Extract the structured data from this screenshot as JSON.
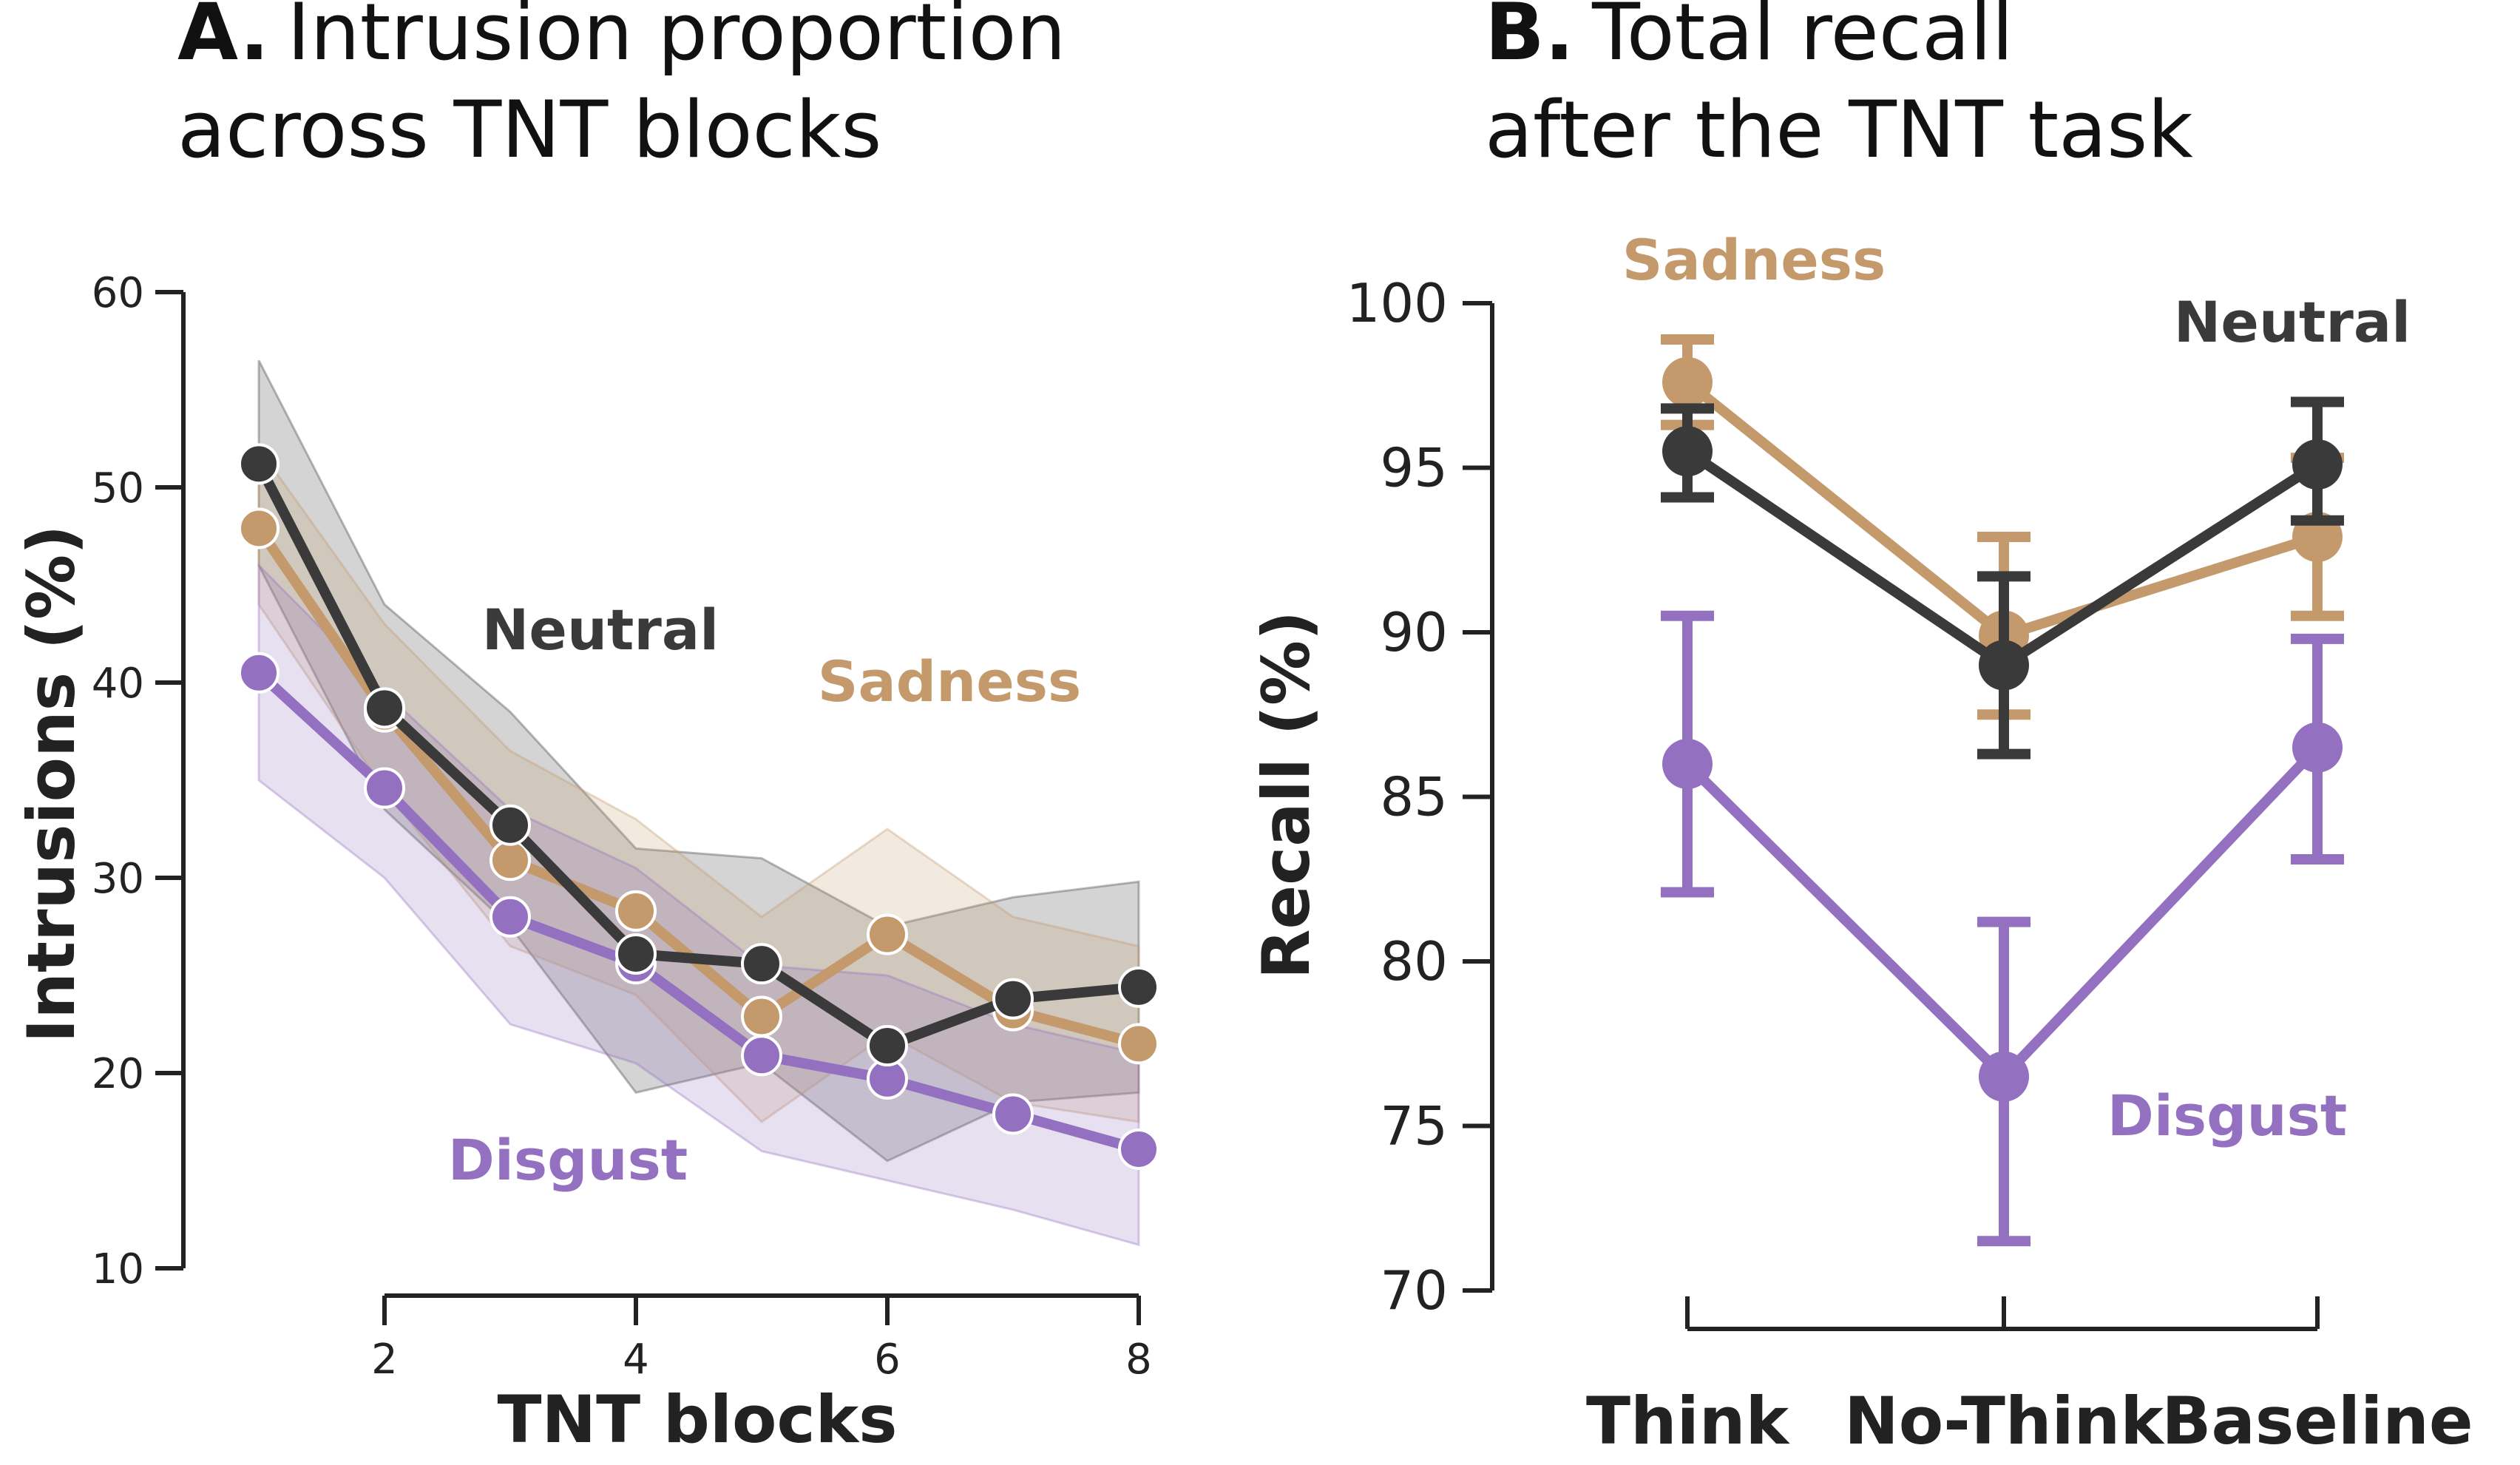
{
  "chart_data": [
    {
      "type": "line",
      "title_letter": "A.",
      "title_line1": "Intrusion proportion",
      "title_line2": "across TNT blocks",
      "xlabel": "TNT blocks",
      "ylabel": "Intrusions (%)",
      "x": [
        1,
        2,
        3,
        4,
        5,
        6,
        7,
        8
      ],
      "xticks": [
        2,
        4,
        6,
        8
      ],
      "yticks": [
        10,
        20,
        30,
        40,
        50,
        60
      ],
      "xlim": [
        0.5,
        8
      ],
      "ylim": [
        10,
        60
      ],
      "series": [
        {
          "name": "Neutral",
          "color": "#3a3a3a",
          "values": [
            51.2,
            38.7,
            32.7,
            26.1,
            25.6,
            21.4,
            23.8,
            24.4
          ],
          "ci_low": [
            46.0,
            33.5,
            27.5,
            19.0,
            20.5,
            15.5,
            18.5,
            19.0
          ],
          "ci_high": [
            56.5,
            44.0,
            38.5,
            31.5,
            31.0,
            27.5,
            29.0,
            29.8
          ]
        },
        {
          "name": "Sadness",
          "color": "#c49a6c",
          "values": [
            47.9,
            38.5,
            30.9,
            28.3,
            22.9,
            27.1,
            23.2,
            21.5
          ],
          "ci_low": [
            44.0,
            34.5,
            26.5,
            24.0,
            17.5,
            22.0,
            18.5,
            17.5
          ],
          "ci_high": [
            52.0,
            43.0,
            36.5,
            33.0,
            28.0,
            32.5,
            28.0,
            26.5
          ]
        },
        {
          "name": "Disgust",
          "color": "#9370c0",
          "values": [
            40.5,
            34.6,
            28.0,
            25.6,
            20.9,
            19.7,
            17.9,
            16.1
          ],
          "ci_low": [
            35.0,
            30.0,
            22.5,
            20.5,
            16.0,
            14.5,
            13.0,
            11.2
          ],
          "ci_high": [
            46.0,
            39.5,
            33.5,
            30.5,
            25.5,
            25.0,
            22.5,
            21.0
          ]
        }
      ]
    },
    {
      "type": "line",
      "title_letter": "B.",
      "title_line1": "Total recall",
      "title_line2": "after the TNT task",
      "xlabel": "",
      "ylabel": "Recall (%)",
      "categories": [
        "Think",
        "No-Think",
        "Baseline"
      ],
      "yticks": [
        70,
        75,
        80,
        85,
        90,
        95,
        100
      ],
      "ylim": [
        70,
        100
      ],
      "series": [
        {
          "name": "Sadness",
          "color": "#c49a6c",
          "values": [
            97.6,
            89.9,
            92.9
          ],
          "err_low": [
            96.3,
            87.5,
            90.5
          ],
          "err_high": [
            98.9,
            92.9,
            95.3
          ]
        },
        {
          "name": "Neutral",
          "color": "#3a3a3a",
          "values": [
            95.5,
            89.0,
            95.1
          ],
          "err_low": [
            94.1,
            86.3,
            93.4
          ],
          "err_high": [
            96.8,
            91.7,
            97.0
          ]
        },
        {
          "name": "Disgust",
          "color": "#9370c0",
          "values": [
            86.0,
            76.5,
            86.5
          ],
          "err_low": [
            82.1,
            71.5,
            83.1
          ],
          "err_high": [
            90.5,
            81.2,
            89.8
          ]
        }
      ]
    }
  ]
}
